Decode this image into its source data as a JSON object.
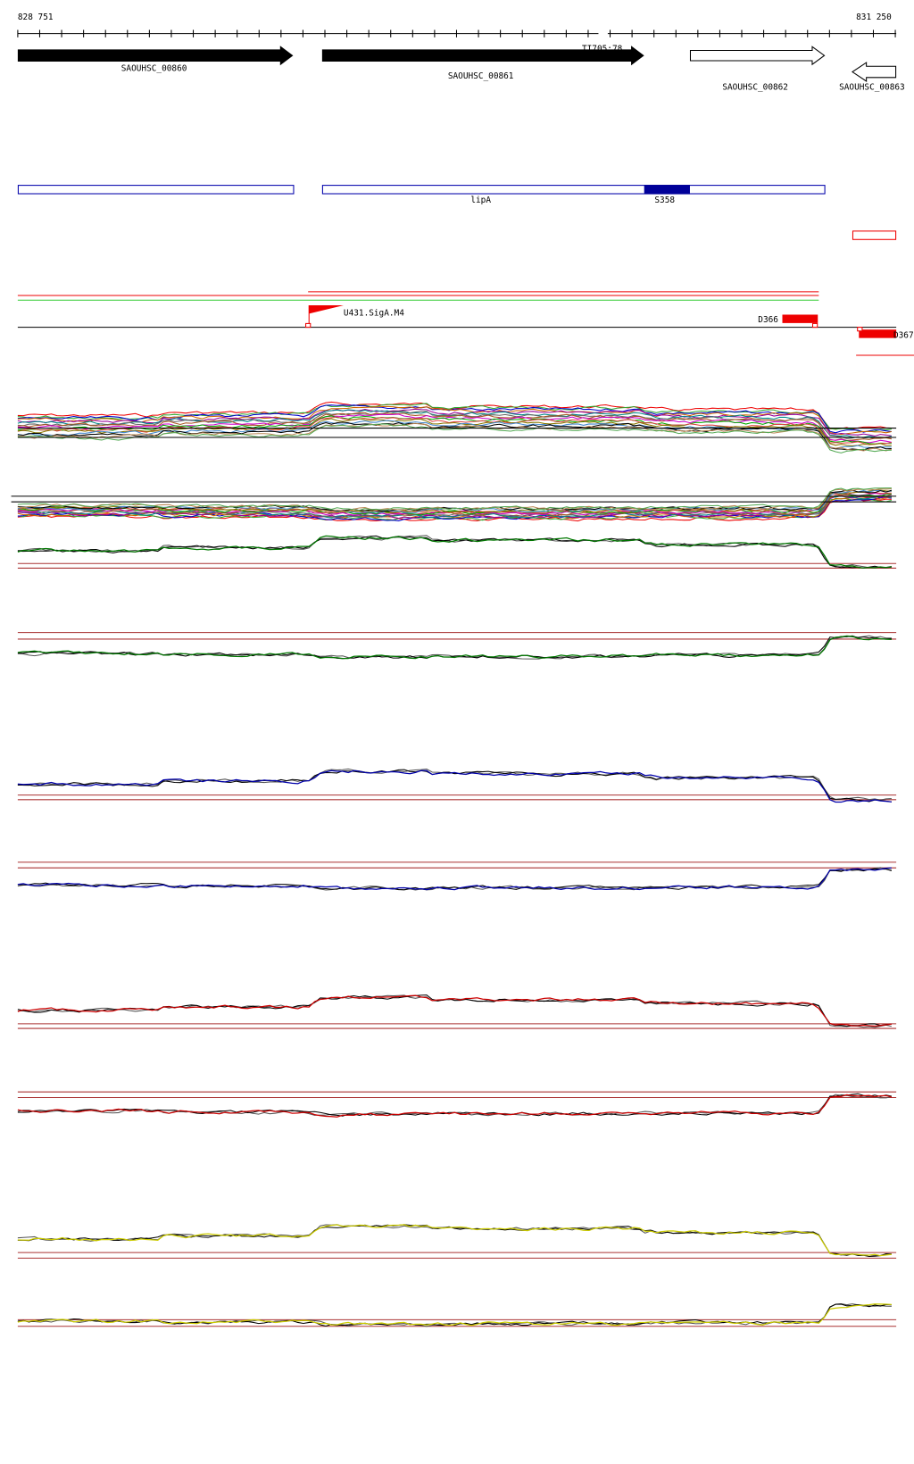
{
  "header": {
    "start": "828 751",
    "end": "831 250"
  },
  "genes": [
    {
      "label": "SAOUHSC_00860"
    },
    {
      "label": "SAOUHSC_00861"
    },
    {
      "label": "SAOUHSC_00862"
    },
    {
      "label": "SAOUHSC_00863"
    }
  ],
  "marker": "TI705:78",
  "features": {
    "gene": "lipA",
    "site": "S358"
  },
  "annotations": {
    "promoter": "U431.SigA.M4",
    "left": "D366",
    "right": "D367"
  }
}
